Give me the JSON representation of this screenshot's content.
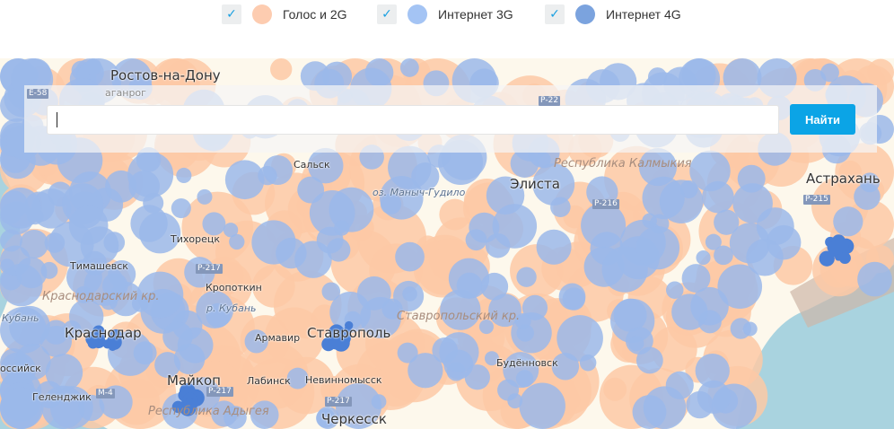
{
  "legend": {
    "items": [
      {
        "label": "Голос и 2G",
        "checked": true,
        "color": "#fdccb0"
      },
      {
        "label": "Интернет 3G",
        "checked": true,
        "color": "#a4c4f4"
      },
      {
        "label": "Интернет 4G",
        "checked": true,
        "color": "#7ba3de"
      }
    ],
    "check_glyph": "✓"
  },
  "search": {
    "value": "",
    "placeholder": "",
    "button_label": "Найти"
  },
  "map": {
    "colors": {
      "land": "#fdf8ec",
      "voice_2g": "#fdc9a6",
      "internet_3g": "#9bb8ea",
      "internet_4g": "#8aa9e2",
      "city_4g": "#4a7fd6",
      "sea": "#a9d3df",
      "mountains": "#cdb7a8"
    },
    "cities": [
      "Ростов-на-Дону",
      "Сальск",
      "Элиста",
      "Астрахань",
      "Тихорецк",
      "Тимашевск",
      "Кропоткин",
      "Краснодар",
      "Армавир",
      "Ставрополь",
      "Будённовск",
      "Невинномысск",
      "оссийск",
      "Геленджик",
      "Майкоп",
      "Лабинск",
      "Черкесск",
      "аганрог"
    ],
    "regions": [
      "Республика Калмыкия",
      "Краснодарский кр.",
      "Ставропольский кр.",
      "Республика Адыгея"
    ],
    "water": [
      "оз. Маныч-Гудило",
      "р. Кубань",
      "Кубань"
    ],
    "roads": [
      "E-58",
      "Р-22",
      "Р-216",
      "Р-215",
      "Р-217",
      "М-4",
      "Р-217",
      "Р-217"
    ]
  }
}
